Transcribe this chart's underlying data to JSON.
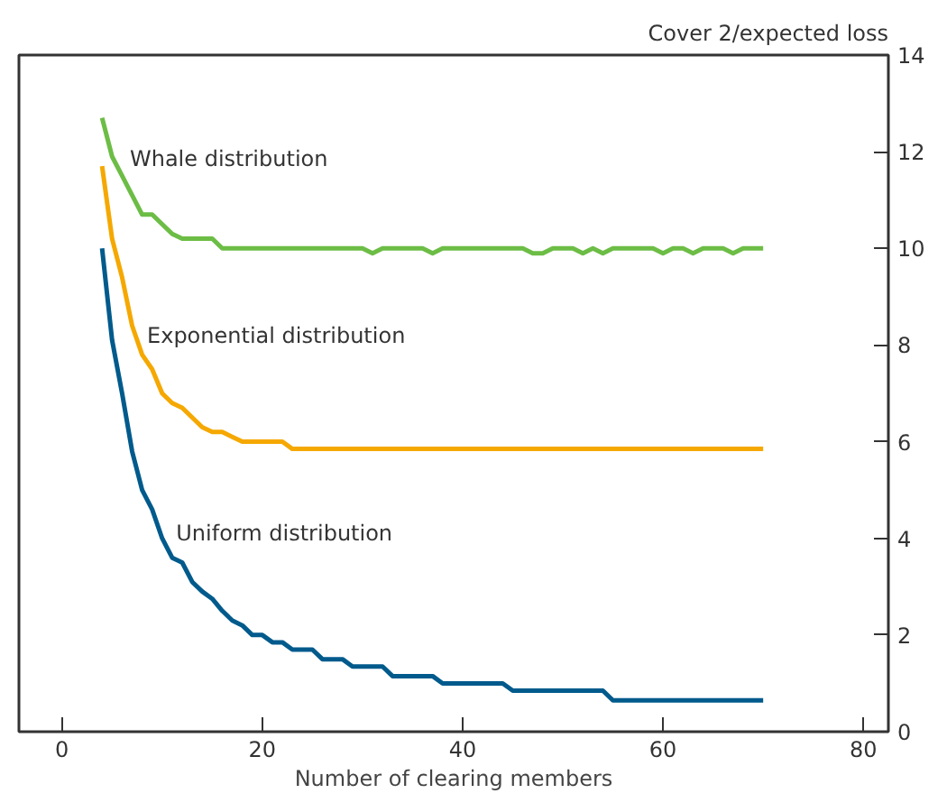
{
  "chart_data": {
    "type": "line",
    "xlabel": "Number of clearing members",
    "ylabel": "Cover 2/expected loss",
    "xlim": [
      -4.3,
      82.5
    ],
    "xticks": [
      0,
      20,
      40,
      60,
      80
    ],
    "ylim": [
      0,
      14
    ],
    "yticks": [
      0,
      2,
      4,
      6,
      8,
      10,
      12,
      14
    ],
    "grid": false,
    "marker": "none",
    "line_style": "solid",
    "series": [
      {
        "name": "Whale distribution",
        "color": "#6cbd45",
        "x": [
          4,
          5,
          6,
          7,
          8,
          9,
          10,
          11,
          12,
          15,
          16,
          30,
          31,
          32,
          36,
          37,
          38,
          46,
          47,
          48,
          49,
          51,
          52,
          53,
          54,
          55,
          59,
          60,
          61,
          62,
          63,
          64,
          66,
          67,
          68,
          70
        ],
        "values": [
          12.7,
          11.9,
          11.5,
          11.1,
          10.7,
          10.7,
          10.5,
          10.3,
          10.2,
          10.2,
          10.0,
          10.0,
          9.9,
          10.0,
          10.0,
          9.9,
          10.0,
          10.0,
          9.9,
          9.9,
          10.0,
          10.0,
          9.9,
          10.0,
          9.9,
          10.0,
          10.0,
          9.9,
          10.0,
          10.0,
          9.9,
          10.0,
          10.0,
          9.9,
          10.0,
          10.0
        ]
      },
      {
        "name": "Exponential distribution",
        "color": "#f5a800",
        "x": [
          4,
          5,
          6,
          7,
          8,
          9,
          10,
          11,
          12,
          13,
          14,
          15,
          16,
          17,
          18,
          22,
          23,
          70
        ],
        "values": [
          11.7,
          10.2,
          9.4,
          8.4,
          7.8,
          7.5,
          7.0,
          6.8,
          6.7,
          6.5,
          6.3,
          6.2,
          6.2,
          6.1,
          6.0,
          6.0,
          5.85,
          5.85
        ]
      },
      {
        "name": "Uniform distribution",
        "color": "#005a8c",
        "x": [
          4,
          5,
          6,
          7,
          8,
          9,
          10,
          11,
          12,
          13,
          14,
          15,
          16,
          17,
          18,
          19,
          20,
          21,
          22,
          23,
          25,
          26,
          28,
          29,
          32,
          33,
          37,
          38,
          44,
          45,
          54,
          55,
          70
        ],
        "values": [
          10.0,
          8.1,
          7.0,
          5.8,
          5.0,
          4.6,
          4.0,
          3.6,
          3.5,
          3.1,
          2.9,
          2.75,
          2.5,
          2.3,
          2.2,
          2.0,
          2.0,
          1.85,
          1.85,
          1.7,
          1.7,
          1.5,
          1.5,
          1.35,
          1.35,
          1.15,
          1.15,
          1.0,
          1.0,
          0.85,
          0.85,
          0.65,
          0.65
        ]
      }
    ]
  }
}
